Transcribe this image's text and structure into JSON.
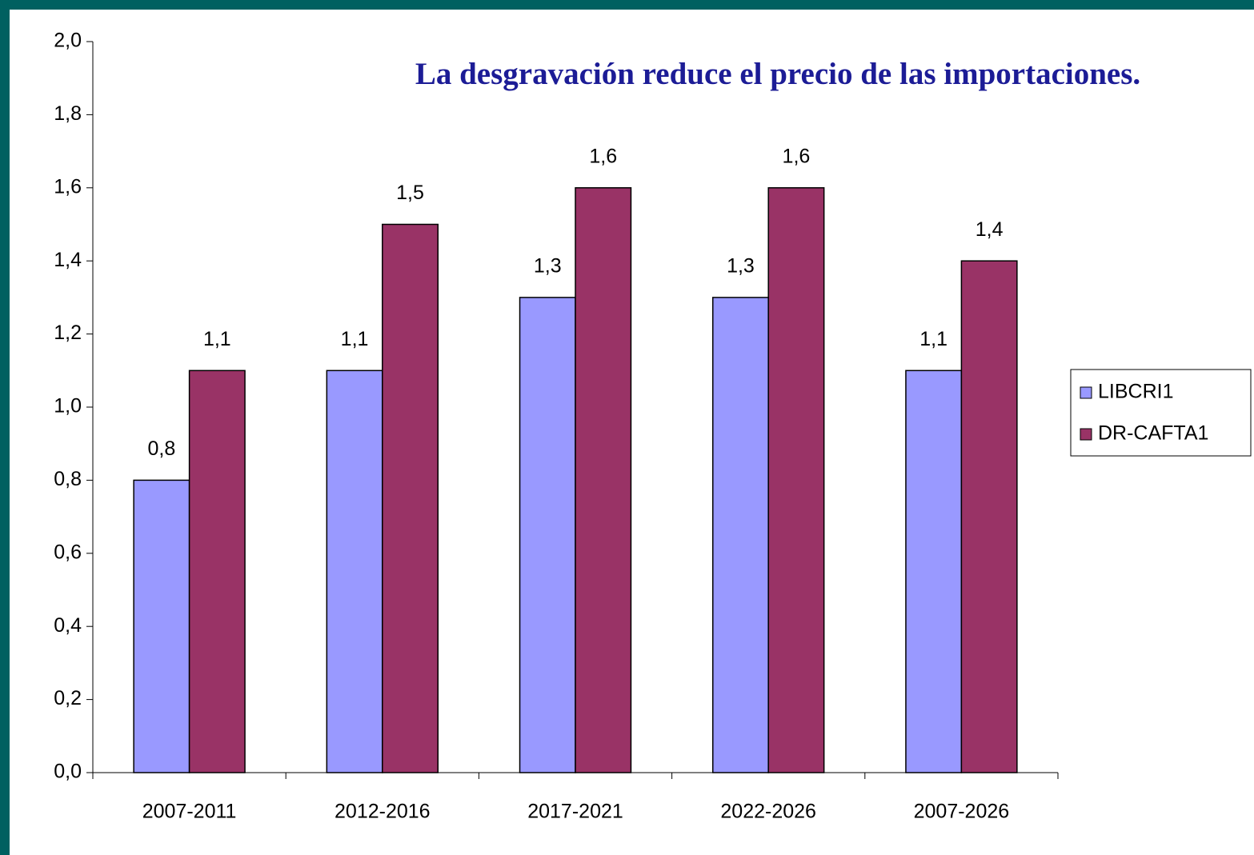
{
  "chart_data": {
    "type": "bar",
    "title": "La desgravación reduce el precio de las importaciones.",
    "categories": [
      "2007-2011",
      "2012-2016",
      "2017-2021",
      "2022-2026",
      "2007-2026"
    ],
    "series": [
      {
        "name": "LIBCRI1",
        "color": "#9999ff",
        "values": [
          0.8,
          1.1,
          1.3,
          1.3,
          1.1
        ],
        "value_labels": [
          "0,8",
          "1,1",
          "1,3",
          "1,3",
          "1,1"
        ]
      },
      {
        "name": "DR-CAFTA1",
        "color": "#993366",
        "values": [
          1.1,
          1.5,
          1.6,
          1.6,
          1.4
        ],
        "value_labels": [
          "1,1",
          "1,5",
          "1,6",
          "1,6",
          "1,4"
        ]
      }
    ],
    "ylim": [
      0,
      2
    ],
    "yticks": [
      {
        "value": 0,
        "label": "0,0"
      },
      {
        "value": 0.2,
        "label": "0,2"
      },
      {
        "value": 0.4,
        "label": "0,4"
      },
      {
        "value": 0.6,
        "label": "0,6"
      },
      {
        "value": 0.8,
        "label": "0,8"
      },
      {
        "value": 1,
        "label": "1,0"
      },
      {
        "value": 1.2,
        "label": "1,2"
      },
      {
        "value": 1.4,
        "label": "1,4"
      },
      {
        "value": 1.6,
        "label": "1,6"
      },
      {
        "value": 1.8,
        "label": "1,8"
      },
      {
        "value": 2,
        "label": "2,0"
      }
    ],
    "legend": "right"
  }
}
